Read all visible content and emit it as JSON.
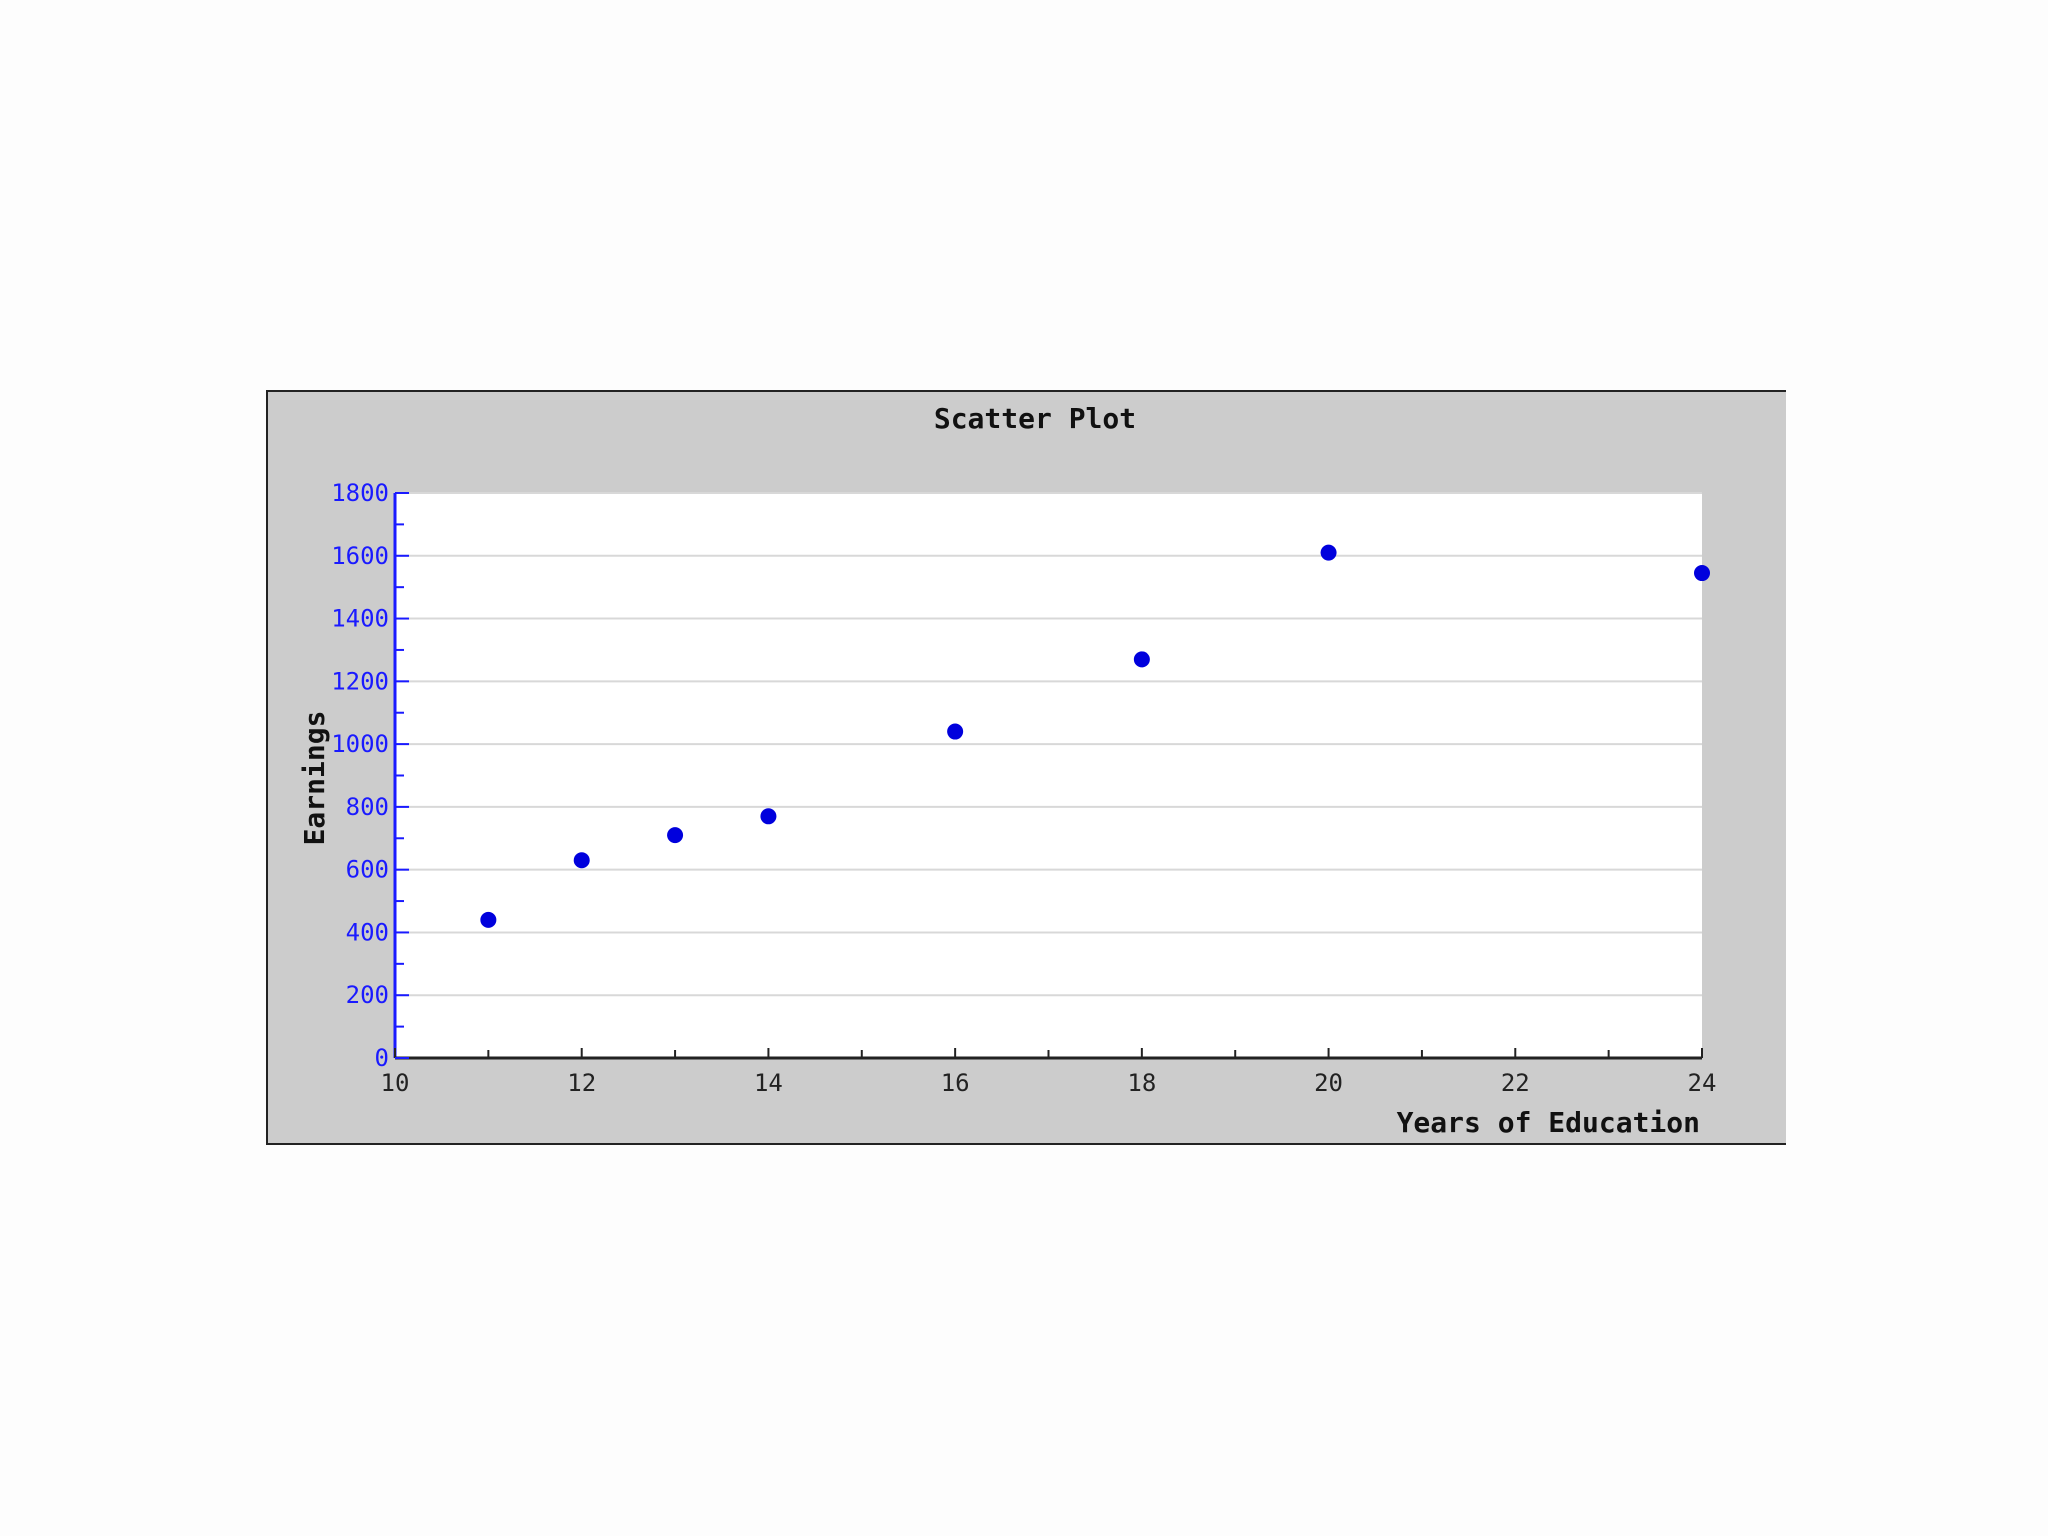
{
  "chart_data": {
    "type": "scatter",
    "title": "Scatter Plot",
    "xlabel": "Years of Education",
    "ylabel": "Earnings",
    "xlim": [
      10,
      24
    ],
    "ylim": [
      0,
      1800
    ],
    "xticks": [
      10,
      12,
      14,
      16,
      18,
      20,
      22,
      24
    ],
    "yticks": [
      0,
      200,
      400,
      600,
      800,
      1000,
      1200,
      1400,
      1600,
      1800
    ],
    "grid": "horizontal",
    "legend": "none",
    "colors": {
      "points": "#0000dd",
      "y_axis": "#1a1aff",
      "x_axis": "#222222",
      "panel": "#cccccc",
      "plot_area": "#ffffff",
      "grid": "#d8d8d8"
    },
    "series": [
      {
        "x": [
          11,
          12,
          13,
          14,
          16,
          18,
          20,
          24
        ],
        "y": [
          440,
          630,
          710,
          770,
          1040,
          1270,
          1610,
          1545
        ]
      }
    ]
  }
}
